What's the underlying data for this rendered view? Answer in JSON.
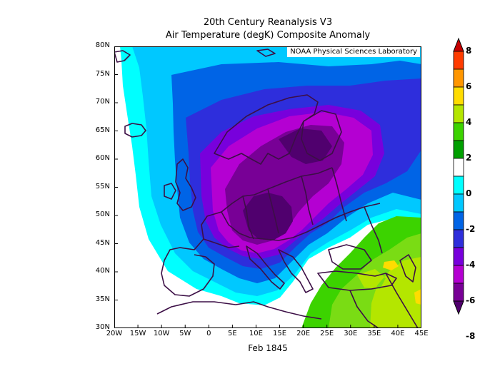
{
  "title_line1": "20th Century Reanalysis V3",
  "title_line2": "Air Temperature (degK) Composite Anomaly",
  "credit": "NOAA Physical Sciences Laboratory",
  "date_label": "Feb 1845",
  "lat_ticks": [
    "30N",
    "35N",
    "40N",
    "45N",
    "50N",
    "55N",
    "60N",
    "65N",
    "70N",
    "75N",
    "80N"
  ],
  "lon_ticks": [
    "20W",
    "15W",
    "10W",
    "5W",
    "0",
    "5E",
    "10E",
    "15E",
    "20E",
    "25E",
    "30E",
    "35E",
    "40E",
    "45E"
  ],
  "colorbar": {
    "labels": [
      "8",
      "6",
      "4",
      "2",
      "0",
      "-2",
      "-4",
      "-6",
      "-8"
    ],
    "colors": [
      "#c60000",
      "#ff3c00",
      "#ff9600",
      "#ffdc00",
      "#b4e600",
      "#3cd300",
      "#00a000",
      "#ffffff",
      "#00ffff",
      "#00c8ff",
      "#0064e6",
      "#2e2edc",
      "#7800dc",
      "#b400d2",
      "#780096",
      "#50006e"
    ]
  },
  "palette": {
    "c_m1": "#00ffff",
    "c_m2": "#00c8ff",
    "c_m3": "#0064e6",
    "c_m4": "#2e2edc",
    "c_m5": "#7800dc",
    "c_m6": "#b400d2",
    "c_m7": "#780096",
    "c_m8": "#50006e",
    "c_p1": "#3cd300",
    "c_p2": "#7adc14",
    "c_p3": "#b4e600",
    "c_p4": "#ffdc00"
  }
}
